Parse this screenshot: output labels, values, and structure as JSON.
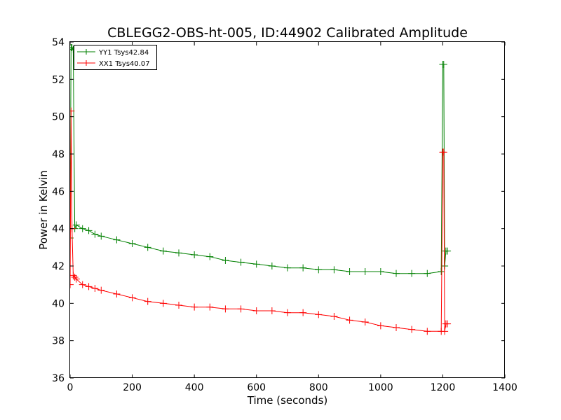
{
  "chart_data": {
    "type": "line",
    "title": "CBLEGG2-OBS-ht-005, ID:44902 Calibrated Amplitude",
    "xlabel": "Time (seconds)",
    "ylabel": "Power in Kelvin",
    "xlim": [
      0,
      1400
    ],
    "ylim": [
      36,
      54
    ],
    "xticks": [
      "0",
      "200",
      "400",
      "600",
      "800",
      "1000",
      "1200",
      "1400"
    ],
    "yticks": [
      "36",
      "38",
      "40",
      "42",
      "44",
      "46",
      "48",
      "50",
      "52",
      "54"
    ],
    "grid": false,
    "legend_position": "top-left",
    "marker": "+",
    "series": [
      {
        "name": "YY1 Tsys42.84",
        "color": "#008000",
        "x": [
          0,
          3,
          6,
          10,
          15,
          20,
          40,
          60,
          80,
          100,
          150,
          200,
          250,
          300,
          350,
          400,
          450,
          500,
          550,
          600,
          650,
          700,
          750,
          800,
          850,
          900,
          950,
          1000,
          1050,
          1100,
          1150,
          1195,
          1200,
          1203,
          1206,
          1210,
          1215
        ],
        "values": [
          43.5,
          53.7,
          53.7,
          53.6,
          44.0,
          44.2,
          44.0,
          43.9,
          43.7,
          43.6,
          43.4,
          43.2,
          43.0,
          42.8,
          42.7,
          42.6,
          42.5,
          42.3,
          42.2,
          42.1,
          42.0,
          41.9,
          41.9,
          41.8,
          41.8,
          41.7,
          41.7,
          41.7,
          41.6,
          41.6,
          41.6,
          41.7,
          52.8,
          52.8,
          42.0,
          42.8,
          42.8
        ]
      },
      {
        "name": "XX1 Tsys40.07",
        "color": "#ff0000",
        "x": [
          0,
          3,
          6,
          10,
          15,
          20,
          40,
          60,
          80,
          100,
          150,
          200,
          250,
          300,
          350,
          400,
          450,
          500,
          550,
          600,
          650,
          700,
          750,
          800,
          850,
          900,
          950,
          1000,
          1050,
          1100,
          1150,
          1195,
          1200,
          1203,
          1206,
          1210,
          1215
        ],
        "values": [
          41.0,
          50.3,
          44.0,
          41.5,
          41.4,
          41.3,
          41.0,
          40.9,
          40.8,
          40.7,
          40.5,
          40.3,
          40.1,
          40.0,
          39.9,
          39.8,
          39.8,
          39.7,
          39.7,
          39.6,
          39.6,
          39.5,
          39.5,
          39.4,
          39.3,
          39.1,
          39.0,
          38.8,
          38.7,
          38.6,
          38.5,
          38.5,
          48.1,
          48.1,
          38.5,
          38.9,
          38.9
        ]
      }
    ]
  }
}
